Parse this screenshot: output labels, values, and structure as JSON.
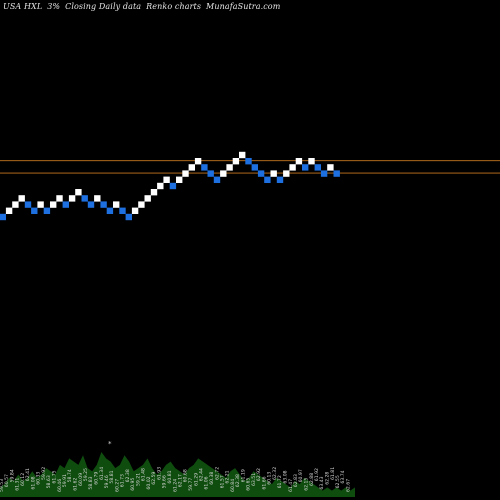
{
  "header": {
    "symbol": "USA HXL",
    "change": "3%",
    "timeframe": "Closing Daily data",
    "chart_kind": "Renko charts",
    "brand": "MunafaSutra.com"
  },
  "colors": {
    "background": "#000000",
    "up_brick": "#ffffff",
    "down_brick": "#1e6fe0",
    "level_line": "#c87820",
    "volume_fill": "#0f4d0f",
    "volume_text": "#d8d8d8"
  },
  "chart_data": {
    "type": "renko",
    "bricks": [
      {
        "x": 0,
        "level": 0,
        "dir": "down"
      },
      {
        "x": 1,
        "level": 1,
        "dir": "up"
      },
      {
        "x": 2,
        "level": 2,
        "dir": "up"
      },
      {
        "x": 3,
        "level": 3,
        "dir": "up"
      },
      {
        "x": 4,
        "level": 2,
        "dir": "down"
      },
      {
        "x": 5,
        "level": 1,
        "dir": "down"
      },
      {
        "x": 6,
        "level": 2,
        "dir": "up"
      },
      {
        "x": 7,
        "level": 1,
        "dir": "down"
      },
      {
        "x": 8,
        "level": 2,
        "dir": "up"
      },
      {
        "x": 9,
        "level": 3,
        "dir": "up"
      },
      {
        "x": 10,
        "level": 2,
        "dir": "down"
      },
      {
        "x": 11,
        "level": 3,
        "dir": "up"
      },
      {
        "x": 12,
        "level": 4,
        "dir": "up"
      },
      {
        "x": 13,
        "level": 3,
        "dir": "down"
      },
      {
        "x": 14,
        "level": 2,
        "dir": "down"
      },
      {
        "x": 15,
        "level": 3,
        "dir": "up"
      },
      {
        "x": 16,
        "level": 2,
        "dir": "down"
      },
      {
        "x": 17,
        "level": 1,
        "dir": "down"
      },
      {
        "x": 18,
        "level": 2,
        "dir": "up"
      },
      {
        "x": 19,
        "level": 1,
        "dir": "down"
      },
      {
        "x": 20,
        "level": 0,
        "dir": "down"
      },
      {
        "x": 21,
        "level": 1,
        "dir": "up"
      },
      {
        "x": 22,
        "level": 2,
        "dir": "up"
      },
      {
        "x": 23,
        "level": 3,
        "dir": "up"
      },
      {
        "x": 24,
        "level": 4,
        "dir": "up"
      },
      {
        "x": 25,
        "level": 5,
        "dir": "up"
      },
      {
        "x": 26,
        "level": 6,
        "dir": "up"
      },
      {
        "x": 27,
        "level": 5,
        "dir": "down"
      },
      {
        "x": 28,
        "level": 6,
        "dir": "up"
      },
      {
        "x": 29,
        "level": 7,
        "dir": "up"
      },
      {
        "x": 30,
        "level": 8,
        "dir": "up"
      },
      {
        "x": 31,
        "level": 9,
        "dir": "up"
      },
      {
        "x": 32,
        "level": 8,
        "dir": "down"
      },
      {
        "x": 33,
        "level": 7,
        "dir": "down"
      },
      {
        "x": 34,
        "level": 6,
        "dir": "down"
      },
      {
        "x": 35,
        "level": 7,
        "dir": "up"
      },
      {
        "x": 36,
        "level": 8,
        "dir": "up"
      },
      {
        "x": 37,
        "level": 9,
        "dir": "up"
      },
      {
        "x": 38,
        "level": 10,
        "dir": "up"
      },
      {
        "x": 39,
        "level": 9,
        "dir": "down"
      },
      {
        "x": 40,
        "level": 8,
        "dir": "down"
      },
      {
        "x": 41,
        "level": 7,
        "dir": "down"
      },
      {
        "x": 42,
        "level": 6,
        "dir": "down"
      },
      {
        "x": 43,
        "level": 7,
        "dir": "up"
      },
      {
        "x": 44,
        "level": 6,
        "dir": "down"
      },
      {
        "x": 45,
        "level": 7,
        "dir": "up"
      },
      {
        "x": 46,
        "level": 8,
        "dir": "up"
      },
      {
        "x": 47,
        "level": 9,
        "dir": "up"
      },
      {
        "x": 48,
        "level": 8,
        "dir": "down"
      },
      {
        "x": 49,
        "level": 9,
        "dir": "up"
      },
      {
        "x": 50,
        "level": 8,
        "dir": "down"
      },
      {
        "x": 51,
        "level": 7,
        "dir": "down"
      },
      {
        "x": 52,
        "level": 8,
        "dir": "up"
      },
      {
        "x": 53,
        "level": 7,
        "dir": "down"
      }
    ],
    "levels": [
      10,
      8
    ],
    "volume": [
      3,
      4,
      6,
      5,
      7,
      5,
      6,
      8,
      6,
      7,
      9,
      8,
      7,
      10,
      9,
      12,
      11,
      10,
      13,
      9,
      8,
      10,
      14,
      12,
      11,
      9,
      10,
      13,
      11,
      8,
      9,
      10,
      12,
      9,
      7,
      8,
      10,
      11,
      9,
      8,
      7,
      9,
      10,
      12,
      11,
      10,
      9,
      8,
      7,
      6,
      8,
      9,
      7,
      5,
      6,
      8,
      7,
      6,
      5,
      4,
      6,
      5,
      4,
      3,
      5,
      4,
      6,
      5,
      4,
      3,
      2,
      3,
      2,
      3,
      2,
      3,
      2,
      3
    ],
    "volume_labels": [
      "59.53",
      "60.57",
      "59.84",
      "61.31",
      "60.12",
      "62.41",
      "61.08",
      "60.33",
      "59.92",
      "58.63",
      "61.75",
      "60.46",
      "59.91",
      "58.74",
      "61.62",
      "60.09",
      "59.25",
      "58.83",
      "60.79",
      "61.34",
      "59.46",
      "58.81",
      "60.27",
      "61.73",
      "62.38",
      "60.95",
      "59.21",
      "61.48",
      "60.02",
      "62.59",
      "61.93",
      "59.66",
      "60.81",
      "61.24",
      "62.17",
      "60.68",
      "59.77",
      "61.29",
      "62.44",
      "61.06",
      "60.38",
      "62.72",
      "61.57",
      "62.21",
      "60.84",
      "62.38",
      "61.19",
      "60.65",
      "63.51",
      "62.92",
      "61.66",
      "60.13",
      "62.32",
      "61.72",
      "63.08",
      "61.47",
      "62.83",
      "60.97",
      "62.15",
      "62.88",
      "61.92",
      "63.43",
      "62.28",
      "61.81",
      "62.55",
      "63.74",
      "62.67"
    ],
    "volume_marker": "*"
  }
}
